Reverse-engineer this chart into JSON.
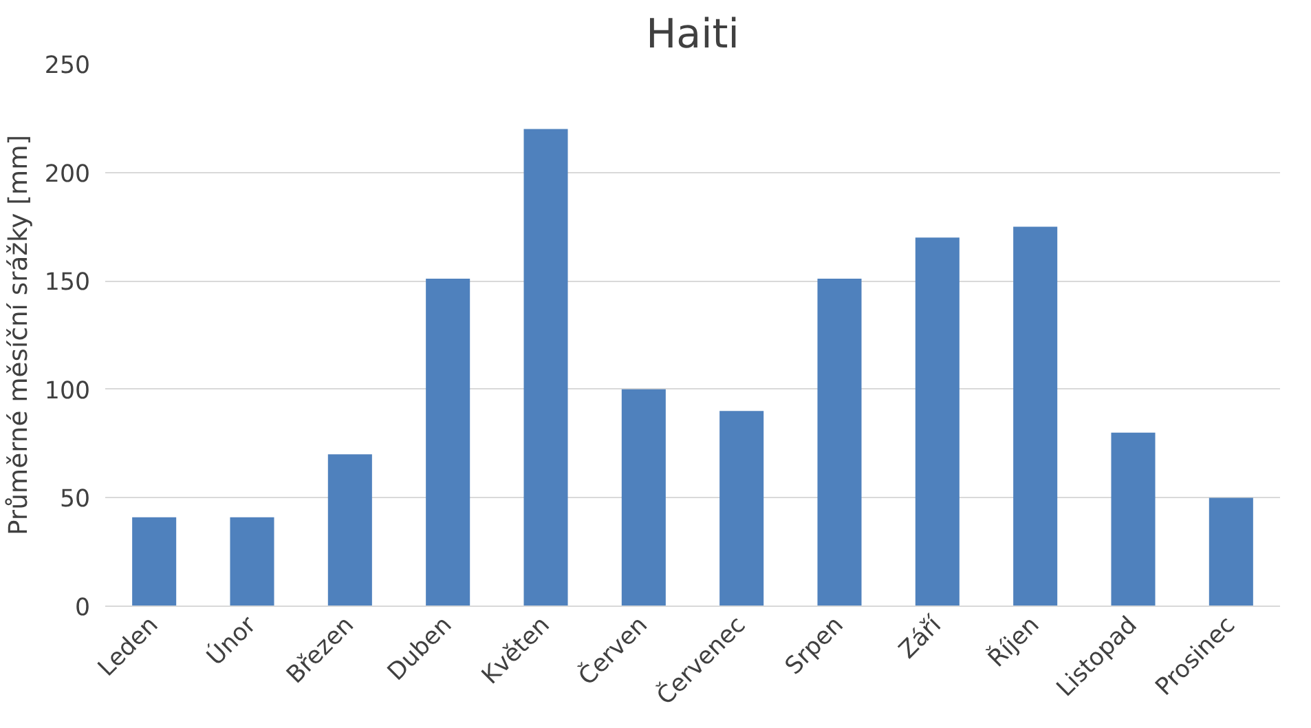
{
  "chart_data": {
    "type": "bar",
    "title": "Haiti",
    "ylabel": "Průměrné měsíční srážky [mm]",
    "categories": [
      "Leden",
      "Únor",
      "Březen",
      "Duben",
      "Květen",
      "Červen",
      "Červenec",
      "Srpen",
      "Září",
      "Říjen",
      "Listopad",
      "Prosinec"
    ],
    "values": [
      41,
      41,
      70,
      151,
      220,
      100,
      90,
      151,
      170,
      175,
      80,
      50
    ],
    "color": "#4f81bd",
    "ylim": [
      0,
      250
    ],
    "yticks": [
      0,
      50,
      100,
      150,
      200,
      250
    ],
    "grid": "y"
  }
}
